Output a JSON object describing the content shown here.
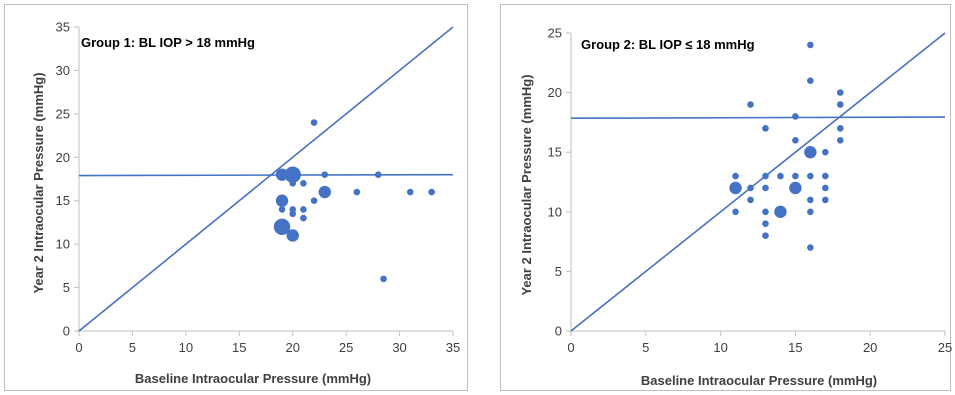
{
  "chart_data": [
    {
      "type": "scatter",
      "title": "Group 1: BL IOP > 18 mmHg",
      "xlabel": "Baseline Intraocular Pressure (mmHg)",
      "ylabel": "Year 2 Intraocular Pressure (mmHg)",
      "xlim": [
        0,
        35
      ],
      "ylim": [
        0,
        35
      ],
      "xticks": [
        0,
        5,
        10,
        15,
        20,
        25,
        30,
        35
      ],
      "yticks": [
        0,
        5,
        10,
        15,
        20,
        25,
        30,
        35
      ],
      "xtick_labels": [
        "0",
        "5",
        "10",
        "15",
        "20",
        "25",
        "30",
        "35"
      ],
      "ytick_labels": [
        "0",
        "5",
        "10",
        "15",
        "20",
        "25",
        "30",
        "35"
      ],
      "grid": false,
      "marker_color": "#4472c4",
      "reference_lines": [
        {
          "kind": "identity",
          "x": [
            0,
            35
          ],
          "y": [
            0,
            35
          ]
        },
        {
          "kind": "horizontal",
          "x": [
            0,
            35
          ],
          "y": [
            17.9,
            18.0
          ]
        }
      ],
      "points": [
        {
          "x": 19,
          "y": 18,
          "size": "medium"
        },
        {
          "x": 20,
          "y": 18,
          "size": "large"
        },
        {
          "x": 20,
          "y": 17,
          "size": "small"
        },
        {
          "x": 21,
          "y": 17,
          "size": "small"
        },
        {
          "x": 22,
          "y": 24,
          "size": "small"
        },
        {
          "x": 23,
          "y": 18,
          "size": "small"
        },
        {
          "x": 23,
          "y": 16,
          "size": "medium"
        },
        {
          "x": 22,
          "y": 15,
          "size": "small"
        },
        {
          "x": 19,
          "y": 15,
          "size": "medium"
        },
        {
          "x": 19,
          "y": 14,
          "size": "small"
        },
        {
          "x": 20,
          "y": 14,
          "size": "small"
        },
        {
          "x": 21,
          "y": 14,
          "size": "small"
        },
        {
          "x": 20,
          "y": 13.5,
          "size": "small"
        },
        {
          "x": 21,
          "y": 13,
          "size": "small"
        },
        {
          "x": 19,
          "y": 12,
          "size": "large"
        },
        {
          "x": 20,
          "y": 11,
          "size": "medium"
        },
        {
          "x": 26,
          "y": 16,
          "size": "small"
        },
        {
          "x": 28,
          "y": 18,
          "size": "small"
        },
        {
          "x": 31,
          "y": 16,
          "size": "small"
        },
        {
          "x": 33,
          "y": 16,
          "size": "small"
        },
        {
          "x": 28.5,
          "y": 6,
          "size": "small"
        }
      ]
    },
    {
      "type": "scatter",
      "title": "Group 2: BL IOP ≤ 18 mmHg",
      "xlabel": "Baseline Intraocular Pressure (mmHg)",
      "ylabel": "Year 2 Intraocular Pressure (mmHg)",
      "xlim": [
        0,
        25
      ],
      "ylim": [
        0,
        25
      ],
      "xticks": [
        0,
        5,
        10,
        15,
        20,
        25
      ],
      "yticks": [
        0,
        5,
        10,
        15,
        20,
        25
      ],
      "xtick_labels": [
        "0",
        "5",
        "10",
        "15",
        "20",
        "25"
      ],
      "ytick_labels": [
        "0",
        "5",
        "10",
        "15",
        "20",
        "25"
      ],
      "grid": false,
      "marker_color": "#4472c4",
      "reference_lines": [
        {
          "kind": "identity",
          "x": [
            0,
            25
          ],
          "y": [
            0,
            25
          ]
        },
        {
          "kind": "horizontal",
          "x": [
            0,
            25
          ],
          "y": [
            17.85,
            17.95
          ]
        }
      ],
      "points": [
        {
          "x": 16,
          "y": 24,
          "size": "small"
        },
        {
          "x": 16,
          "y": 21,
          "size": "small"
        },
        {
          "x": 18,
          "y": 20,
          "size": "small"
        },
        {
          "x": 12,
          "y": 19,
          "size": "small"
        },
        {
          "x": 18,
          "y": 19,
          "size": "small"
        },
        {
          "x": 15,
          "y": 18,
          "size": "small"
        },
        {
          "x": 13,
          "y": 17,
          "size": "small"
        },
        {
          "x": 18,
          "y": 17,
          "size": "small"
        },
        {
          "x": 15,
          "y": 16,
          "size": "small"
        },
        {
          "x": 18,
          "y": 16,
          "size": "small"
        },
        {
          "x": 16,
          "y": 15,
          "size": "medium"
        },
        {
          "x": 17,
          "y": 15,
          "size": "small"
        },
        {
          "x": 11,
          "y": 13,
          "size": "small"
        },
        {
          "x": 13,
          "y": 13,
          "size": "small"
        },
        {
          "x": 14,
          "y": 13,
          "size": "small"
        },
        {
          "x": 15,
          "y": 13,
          "size": "small"
        },
        {
          "x": 16,
          "y": 13,
          "size": "small"
        },
        {
          "x": 17,
          "y": 13,
          "size": "small"
        },
        {
          "x": 11,
          "y": 12,
          "size": "medium"
        },
        {
          "x": 12,
          "y": 12,
          "size": "small"
        },
        {
          "x": 13,
          "y": 12,
          "size": "small"
        },
        {
          "x": 15,
          "y": 12,
          "size": "medium"
        },
        {
          "x": 17,
          "y": 12,
          "size": "small"
        },
        {
          "x": 12,
          "y": 11,
          "size": "small"
        },
        {
          "x": 16,
          "y": 11,
          "size": "small"
        },
        {
          "x": 17,
          "y": 11,
          "size": "small"
        },
        {
          "x": 11,
          "y": 10,
          "size": "small"
        },
        {
          "x": 13,
          "y": 10,
          "size": "small"
        },
        {
          "x": 14,
          "y": 10,
          "size": "medium"
        },
        {
          "x": 16,
          "y": 10,
          "size": "small"
        },
        {
          "x": 13,
          "y": 9,
          "size": "small"
        },
        {
          "x": 13,
          "y": 8,
          "size": "small"
        },
        {
          "x": 16,
          "y": 7,
          "size": "small"
        }
      ]
    }
  ]
}
